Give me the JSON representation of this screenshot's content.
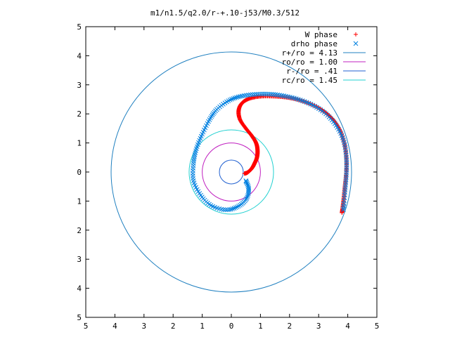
{
  "chart_data": {
    "type": "scatter",
    "title": "m1/n1.5/q2.0/r-+.10-j53/M0.3/512",
    "xlabel": "",
    "ylabel": "",
    "xlim": [
      -5,
      5
    ],
    "ylim": [
      -5,
      5
    ],
    "x_tick_values": [
      -5,
      -4,
      -3,
      -2,
      -1,
      0,
      1,
      2,
      3,
      4,
      5
    ],
    "x_tick_labels": [
      "5",
      "4",
      "3",
      "2",
      "1",
      "0",
      "1",
      "2",
      "3",
      "4",
      "5"
    ],
    "y_tick_values": [
      5,
      4,
      3,
      2,
      1,
      0,
      -1,
      -2,
      -3,
      -4,
      -5
    ],
    "y_tick_labels": [
      "5",
      "4",
      "3",
      "2",
      "1",
      "0",
      "1",
      "2",
      "3",
      "4",
      "5"
    ],
    "grid": false,
    "legend_position": "top-right",
    "series": [
      {
        "name": "W phase",
        "kind": "points",
        "marker": "plus",
        "color": "#ff0000",
        "points": [
          [
            0.45,
            -0.05
          ],
          [
            0.55,
            -0.02
          ],
          [
            0.7,
            0.12
          ],
          [
            0.8,
            0.3
          ],
          [
            0.88,
            0.5
          ],
          [
            0.9,
            0.75
          ],
          [
            0.85,
            1.0
          ],
          [
            0.7,
            1.25
          ],
          [
            0.5,
            1.5
          ],
          [
            0.3,
            1.8
          ],
          [
            0.25,
            2.1
          ],
          [
            0.35,
            2.35
          ],
          [
            0.6,
            2.52
          ],
          [
            1.0,
            2.6
          ],
          [
            1.5,
            2.6
          ],
          [
            2.0,
            2.55
          ],
          [
            2.5,
            2.42
          ],
          [
            3.0,
            2.2
          ],
          [
            3.4,
            1.9
          ],
          [
            3.7,
            1.5
          ],
          [
            3.88,
            1.0
          ],
          [
            3.95,
            0.5
          ],
          [
            3.95,
            0.0
          ],
          [
            3.9,
            -0.5
          ],
          [
            3.85,
            -1.0
          ],
          [
            3.8,
            -1.4
          ]
        ]
      },
      {
        "name": "drho phase",
        "kind": "points",
        "marker": "cross",
        "color": "#0080e0",
        "points": [
          [
            0.5,
            -0.3
          ],
          [
            0.6,
            -0.6
          ],
          [
            0.5,
            -0.95
          ],
          [
            0.2,
            -1.2
          ],
          [
            -0.2,
            -1.3
          ],
          [
            -0.7,
            -1.15
          ],
          [
            -1.05,
            -0.8
          ],
          [
            -1.3,
            -0.3
          ],
          [
            -1.3,
            0.3
          ],
          [
            -1.2,
            0.8
          ],
          [
            -1.0,
            1.3
          ],
          [
            -0.75,
            1.8
          ],
          [
            -0.5,
            2.15
          ],
          [
            -0.1,
            2.45
          ],
          [
            0.3,
            2.6
          ],
          [
            0.8,
            2.67
          ],
          [
            1.3,
            2.68
          ],
          [
            1.8,
            2.62
          ],
          [
            2.3,
            2.5
          ],
          [
            2.8,
            2.3
          ],
          [
            3.25,
            2.0
          ],
          [
            3.6,
            1.6
          ],
          [
            3.85,
            1.1
          ],
          [
            3.95,
            0.5
          ],
          [
            3.95,
            -0.1
          ],
          [
            3.9,
            -0.7
          ],
          [
            3.85,
            -1.3
          ]
        ]
      },
      {
        "name": "r+/ro = 4.13",
        "kind": "circle",
        "radius": 4.13,
        "color": "#2080c0"
      },
      {
        "name": "ro/ro = 1.00",
        "kind": "circle",
        "radius": 1.0,
        "color": "#c020c0"
      },
      {
        "name": "r-/ro = .41",
        "kind": "circle",
        "radius": 0.41,
        "color": "#2060d0"
      },
      {
        "name": "rc/ro = 1.45",
        "kind": "circle",
        "radius": 1.45,
        "color": "#20d0d0"
      }
    ]
  }
}
